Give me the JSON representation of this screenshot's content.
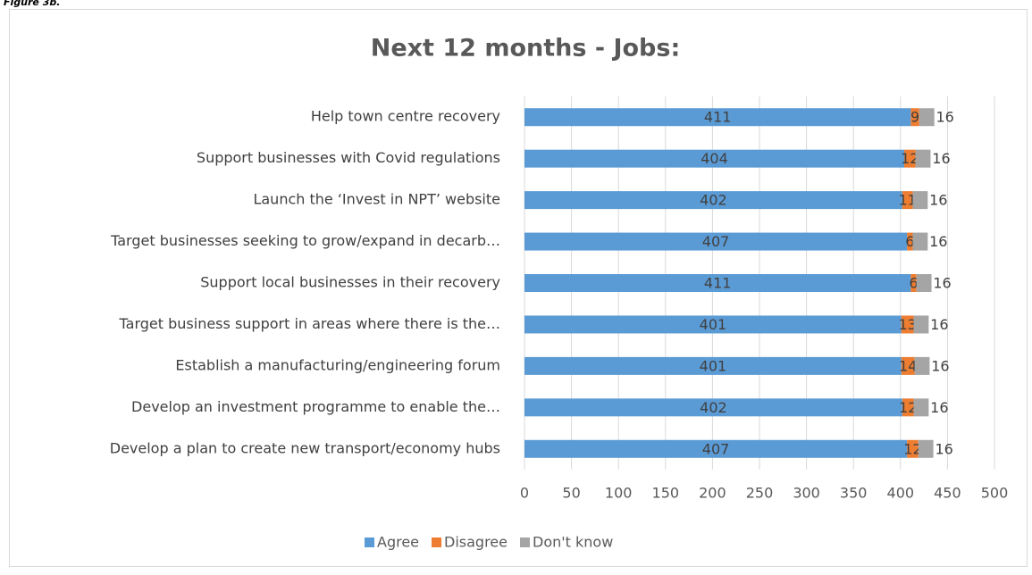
{
  "caption": "Figure 3b.",
  "chart_data": {
    "type": "stacked_barh",
    "title": "Next 12 months - Jobs:",
    "categories": [
      "Help town centre recovery",
      "Support businesses with Covid regulations",
      "Launch the ‘Invest in NPT’ website",
      "Target businesses seeking to grow/expand in decarb…",
      "Support local businesses in their recovery",
      "Target business support in areas where there is the…",
      "Establish a manufacturing/engineering forum",
      "Develop an investment programme to enable the…",
      "Develop a plan to create new transport/economy hubs"
    ],
    "series": [
      {
        "name": "Agree",
        "color": "#5b9bd5",
        "values": [
          411,
          404,
          402,
          407,
          411,
          401,
          401,
          402,
          407
        ]
      },
      {
        "name": "Disagree",
        "color": "#ed7d31",
        "values": [
          9,
          12,
          11,
          6,
          6,
          13,
          14,
          12,
          12
        ]
      },
      {
        "name": "Don't know",
        "color": "#a5a5a5",
        "values": [
          16,
          16,
          16,
          16,
          16,
          16,
          16,
          16,
          16
        ]
      }
    ],
    "xlim": [
      0,
      500
    ],
    "xticks": [
      0,
      50,
      100,
      150,
      200,
      250,
      300,
      350,
      400,
      450,
      500
    ],
    "grid": true,
    "legend": "bottom"
  }
}
